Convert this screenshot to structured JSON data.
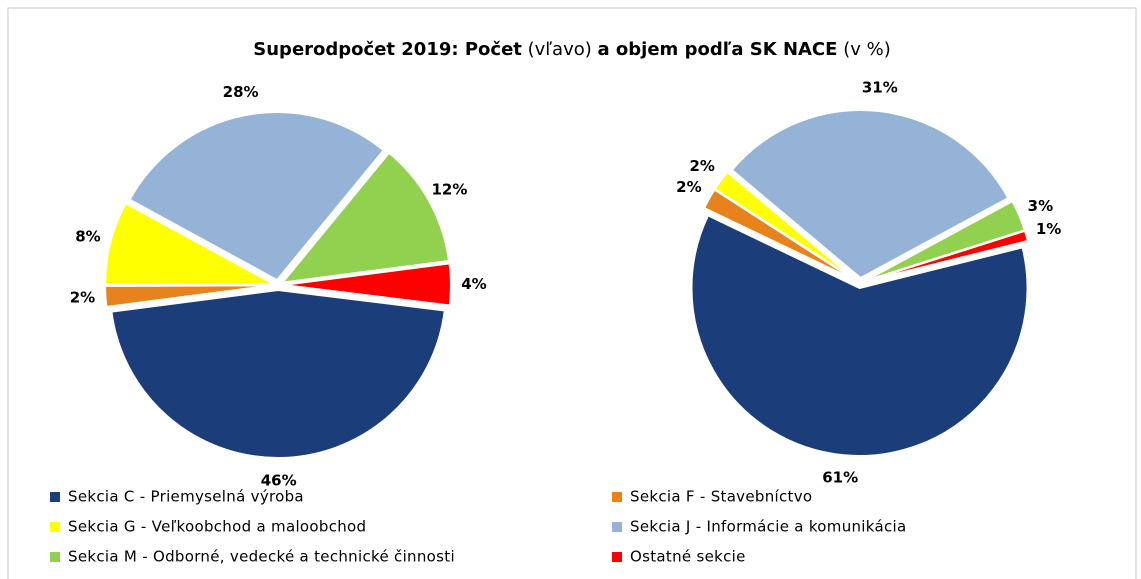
{
  "title_parts": [
    "Superodpočet 2019: Počet",
    "(vľavo)",
    "a objem podľa SK NACE",
    "(v %)"
  ],
  "chart_data": [
    {
      "type": "pie",
      "categories": [
        "Sekcia C - Priemyselná výroba",
        "Sekcia F - Stavebníctvo",
        "Sekcia G - Veľkoobchod a maloobchod",
        "Sekcia J - Informácie a komunikácia",
        "Sekcia M - Odborné, vedecké a technické činnosti",
        "Ostatné sekcie"
      ],
      "values": [
        46,
        2,
        8,
        28,
        12,
        4
      ],
      "value_labels": [
        "46%",
        "2%",
        "8%",
        "28%",
        "12%",
        "4%"
      ],
      "colors": [
        "#1b3d7a",
        "#e8821c",
        "#ffff00",
        "#95b3d7",
        "#92d050",
        "#ff0000"
      ]
    },
    {
      "type": "pie",
      "categories": [
        "Sekcia C - Priemyselná výroba",
        "Sekcia F - Stavebníctvo",
        "Sekcia G - Veľkoobchod a maloobchod",
        "Sekcia J - Informácie a komunikácia",
        "Sekcia M - Odborné, vedecké a technické činnosti",
        "Ostatné sekcie"
      ],
      "values": [
        61,
        2,
        2,
        31,
        3,
        1
      ],
      "value_labels": [
        "61%",
        "2%",
        "2%",
        "31%",
        "3%",
        "1%"
      ],
      "colors": [
        "#1b3d7a",
        "#e8821c",
        "#ffff00",
        "#95b3d7",
        "#92d050",
        "#ff0000"
      ]
    }
  ]
}
